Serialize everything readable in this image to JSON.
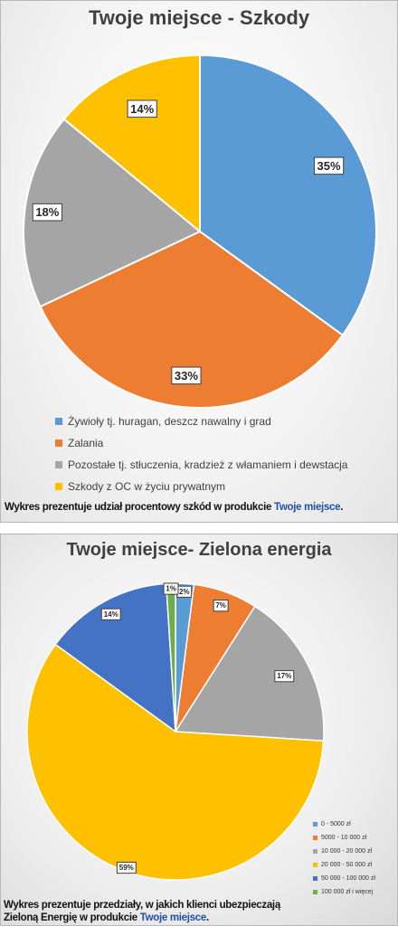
{
  "chart_data": [
    {
      "type": "pie",
      "title": "Twoje miejsce - Szkody",
      "categories": [
        "Żywioły tj. huragan, deszcz nawalny i grad",
        "Zalania",
        "Pozostałe tj. stłuczenia, kradzież z włamaniem i dewstacja",
        "Szkody z OC w życiu prywatnym"
      ],
      "values": [
        35,
        33,
        18,
        14
      ],
      "data_labels": [
        "35%",
        "33%",
        "18%",
        "14%"
      ],
      "colors": [
        "#5b9bd5",
        "#ed7d31",
        "#a5a5a5",
        "#ffc000"
      ],
      "legend_position": "bottom"
    },
    {
      "type": "pie",
      "title": "Twoje miejsce- Zielona energia",
      "categories": [
        "0 - 5000 zł",
        "5000 - 10 000 zł",
        "10 000 - 20 000 zł",
        "20 000 - 50 000 zł",
        "50 000 - 100 000 zł",
        "100 000 zł i więcej"
      ],
      "values": [
        2,
        7,
        17,
        59,
        14,
        1
      ],
      "data_labels": [
        "2%",
        "7%",
        "17%",
        "59%",
        "14%",
        "1%"
      ],
      "colors": [
        "#5b9bd5",
        "#ed7d31",
        "#a5a5a5",
        "#ffc000",
        "#4472c4",
        "#70ad47"
      ],
      "legend_position": "bottom-right"
    }
  ],
  "captions": {
    "caption1_text": "Wykres prezentuje udział procentowy szkód w produkcie ",
    "caption1_highlight": "Twoje miejsce",
    "caption1_end": ".",
    "caption2_line1": "Wykres prezentuje przedziały, w jakich klienci ubezpieczają",
    "caption2_line2_text": "Zieloną Energię w produkcie ",
    "caption2_highlight": "Twoje miejsce",
    "caption2_end": "."
  }
}
